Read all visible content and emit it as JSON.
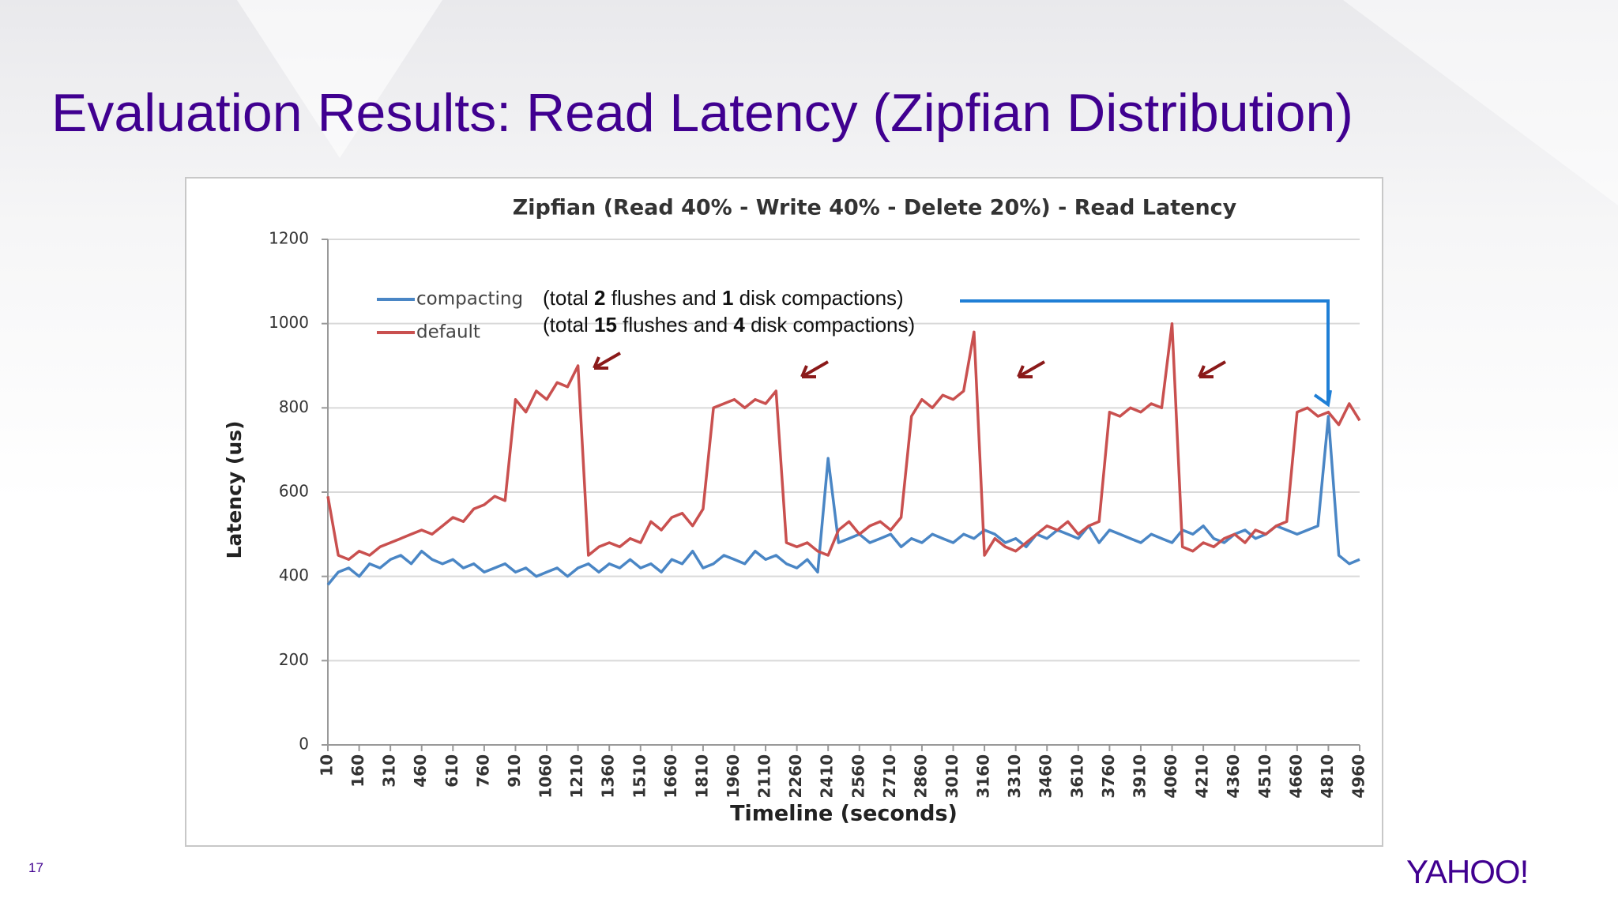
{
  "slide_title": "Evaluation Results: Read Latency (Zipfian Distribution)",
  "page_number": "17",
  "logo": "YAHOO!",
  "chart_data": {
    "type": "line",
    "title": "Zipfian (Read 40% - Write 40% - Delete 20%) - Read Latency",
    "x_label": "Timeline (seconds)",
    "y_label": "Latency (us)",
    "xlim": [
      10,
      4960
    ],
    "xticks": [
      10,
      160,
      310,
      460,
      610,
      760,
      910,
      1060,
      1210,
      1360,
      1510,
      1660,
      1810,
      1960,
      2110,
      2260,
      2410,
      2560,
      2710,
      2860,
      3010,
      3160,
      3310,
      3460,
      3610,
      3760,
      3910,
      4060,
      4210,
      4360,
      4510,
      4660,
      4810,
      4960
    ],
    "ylim": [
      0,
      1200
    ],
    "yticks": [
      0,
      200,
      400,
      600,
      800,
      1000,
      1200
    ],
    "grid": true,
    "legend": "upper left",
    "annotations": [
      [
        "(total ",
        "2",
        " flushes and ",
        "1",
        " disk compactions)"
      ],
      [
        "(total ",
        "15",
        " flushes and ",
        "4",
        " disk compactions)"
      ]
    ],
    "x": [
      10,
      60,
      110,
      160,
      210,
      260,
      310,
      360,
      410,
      460,
      510,
      560,
      610,
      660,
      710,
      760,
      810,
      860,
      910,
      960,
      1010,
      1060,
      1110,
      1160,
      1210,
      1260,
      1310,
      1360,
      1410,
      1460,
      1510,
      1560,
      1610,
      1660,
      1710,
      1760,
      1810,
      1860,
      1910,
      1960,
      2010,
      2060,
      2110,
      2160,
      2210,
      2260,
      2310,
      2360,
      2410,
      2460,
      2510,
      2560,
      2610,
      2660,
      2710,
      2760,
      2810,
      2860,
      2910,
      2960,
      3010,
      3060,
      3110,
      3160,
      3210,
      3260,
      3310,
      3360,
      3410,
      3460,
      3510,
      3560,
      3610,
      3660,
      3710,
      3760,
      3810,
      3860,
      3910,
      3960,
      4010,
      4060,
      4110,
      4160,
      4210,
      4260,
      4310,
      4360,
      4410,
      4460,
      4510,
      4560,
      4610,
      4660,
      4710,
      4760,
      4810,
      4860,
      4910,
      4960
    ],
    "series": [
      {
        "name": "compacting",
        "color": "#4a86c5",
        "values": [
          380,
          410,
          420,
          400,
          430,
          420,
          440,
          450,
          430,
          460,
          440,
          430,
          440,
          420,
          430,
          410,
          420,
          430,
          410,
          420,
          400,
          410,
          420,
          400,
          420,
          430,
          410,
          430,
          420,
          440,
          420,
          430,
          410,
          440,
          430,
          460,
          420,
          430,
          450,
          440,
          430,
          460,
          440,
          450,
          430,
          420,
          440,
          410,
          680,
          480,
          490,
          500,
          480,
          490,
          500,
          470,
          490,
          480,
          500,
          490,
          480,
          500,
          490,
          510,
          500,
          480,
          490,
          470,
          500,
          490,
          510,
          500,
          490,
          520,
          480,
          510,
          500,
          490,
          480,
          500,
          490,
          480,
          510,
          500,
          520,
          490,
          480,
          500,
          510,
          490,
          500,
          520,
          510,
          500,
          510,
          520,
          780,
          450,
          430,
          440
        ]
      },
      {
        "name": "default",
        "color": "#c9504f",
        "values": [
          590,
          450,
          440,
          460,
          450,
          470,
          480,
          490,
          500,
          510,
          500,
          520,
          540,
          530,
          560,
          570,
          590,
          580,
          820,
          790,
          840,
          820,
          860,
          850,
          900,
          450,
          470,
          480,
          470,
          490,
          480,
          530,
          510,
          540,
          550,
          520,
          560,
          800,
          810,
          820,
          800,
          820,
          810,
          840,
          480,
          470,
          480,
          460,
          450,
          510,
          530,
          500,
          520,
          530,
          510,
          540,
          780,
          820,
          800,
          830,
          820,
          840,
          980,
          450,
          490,
          470,
          460,
          480,
          500,
          520,
          510,
          530,
          500,
          520,
          530,
          790,
          780,
          800,
          790,
          810,
          800,
          1000,
          470,
          460,
          480,
          470,
          490,
          500,
          480,
          510,
          500,
          520,
          530,
          790,
          800,
          780,
          790,
          760,
          810,
          770
        ]
      }
    ]
  }
}
